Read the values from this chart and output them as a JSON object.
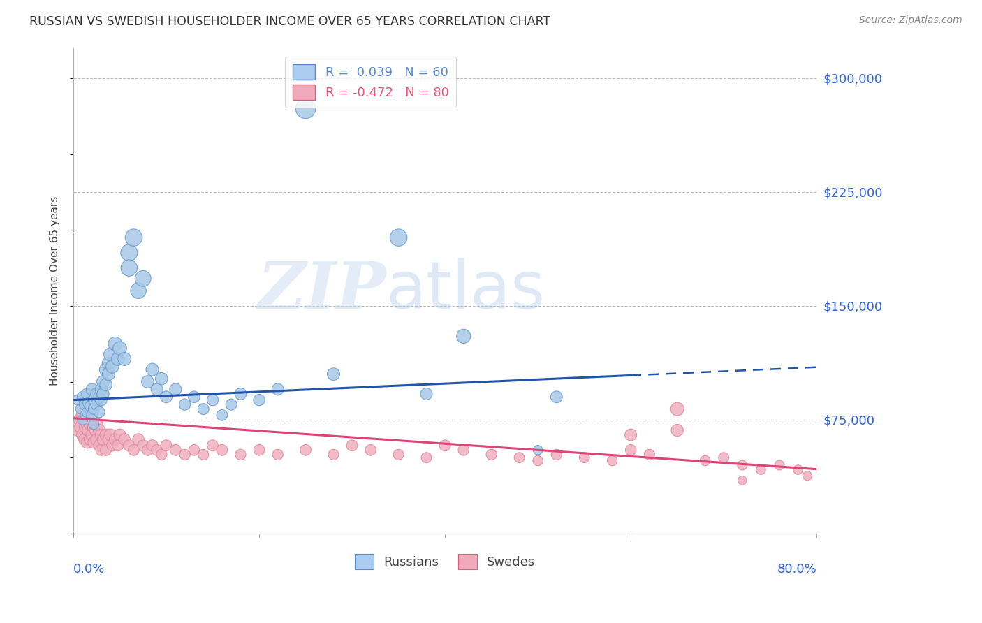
{
  "title": "RUSSIAN VS SWEDISH HOUSEHOLDER INCOME OVER 65 YEARS CORRELATION CHART",
  "source": "Source: ZipAtlas.com",
  "ylabel": "Householder Income Over 65 years",
  "yticks": [
    75000,
    150000,
    225000,
    300000
  ],
  "ytick_labels": [
    "$75,000",
    "$150,000",
    "$225,000",
    "$300,000"
  ],
  "xmin": 0.0,
  "xmax": 0.8,
  "ymin": 0,
  "ymax": 320000,
  "watermark_zip": "ZIP",
  "watermark_atlas": "atlas",
  "russian_color": "#a8c8e8",
  "russian_edge_color": "#6699cc",
  "swedish_color": "#f0b0c0",
  "swedish_edge_color": "#dd8899",
  "russian_line_color": "#2255aa",
  "swedish_line_color": "#dd4477",
  "russian_trend_x_solid_end": 0.6,
  "russian_trend_slope": 27000,
  "russian_trend_intercept": 88000,
  "swedish_trend_slope": -42000,
  "swedish_trend_intercept": 76000,
  "background_color": "#ffffff",
  "grid_color": "#bbbbbb",
  "ytick_color": "#3366dd",
  "legend_r1_label": "R =  0.039   N = 60",
  "legend_r2_label": "R = -0.472   N = 80",
  "legend_r1_color": "#5588cc",
  "legend_r2_color": "#ee5577",
  "legend_r1_patch": "#aaccee",
  "legend_r2_patch": "#f0aabb",
  "bottom_legend_russian": "Russians",
  "bottom_legend_swedish": "Swedes",
  "russian_scatter_x": [
    0.005,
    0.008,
    0.01,
    0.01,
    0.012,
    0.013,
    0.015,
    0.015,
    0.016,
    0.018,
    0.02,
    0.02,
    0.022,
    0.022,
    0.022,
    0.025,
    0.025,
    0.028,
    0.028,
    0.03,
    0.03,
    0.032,
    0.032,
    0.035,
    0.035,
    0.038,
    0.038,
    0.04,
    0.042,
    0.045,
    0.048,
    0.05,
    0.055,
    0.06,
    0.06,
    0.065,
    0.07,
    0.075,
    0.08,
    0.085,
    0.09,
    0.095,
    0.1,
    0.11,
    0.12,
    0.13,
    0.14,
    0.15,
    0.16,
    0.17,
    0.18,
    0.2,
    0.22,
    0.25,
    0.28,
    0.35,
    0.38,
    0.42,
    0.5,
    0.52
  ],
  "russian_scatter_y": [
    88000,
    82000,
    90000,
    75000,
    85000,
    78000,
    92000,
    80000,
    86000,
    84000,
    95000,
    78000,
    88000,
    82000,
    72000,
    92000,
    85000,
    90000,
    80000,
    95000,
    88000,
    100000,
    92000,
    108000,
    98000,
    112000,
    105000,
    118000,
    110000,
    125000,
    115000,
    122000,
    115000,
    185000,
    175000,
    195000,
    160000,
    168000,
    100000,
    108000,
    95000,
    102000,
    90000,
    95000,
    85000,
    90000,
    82000,
    88000,
    78000,
    85000,
    92000,
    88000,
    95000,
    280000,
    105000,
    195000,
    92000,
    130000,
    55000,
    90000
  ],
  "russian_scatter_sizes": [
    120,
    110,
    130,
    115,
    120,
    112,
    135,
    120,
    125,
    118,
    145,
    128,
    135,
    125,
    115,
    150,
    140,
    145,
    130,
    155,
    145,
    165,
    155,
    175,
    162,
    180,
    170,
    190,
    178,
    200,
    185,
    195,
    185,
    300,
    285,
    310,
    260,
    270,
    160,
    170,
    150,
    158,
    145,
    150,
    135,
    142,
    130,
    138,
    125,
    132,
    145,
    138,
    148,
    420,
    165,
    310,
    148,
    210,
    95,
    145
  ],
  "swedish_scatter_x": [
    0.003,
    0.005,
    0.007,
    0.008,
    0.01,
    0.01,
    0.012,
    0.012,
    0.013,
    0.015,
    0.015,
    0.016,
    0.018,
    0.018,
    0.02,
    0.02,
    0.022,
    0.022,
    0.024,
    0.025,
    0.025,
    0.028,
    0.028,
    0.03,
    0.03,
    0.032,
    0.035,
    0.035,
    0.038,
    0.04,
    0.042,
    0.045,
    0.048,
    0.05,
    0.055,
    0.06,
    0.065,
    0.07,
    0.075,
    0.08,
    0.085,
    0.09,
    0.095,
    0.1,
    0.11,
    0.12,
    0.13,
    0.14,
    0.15,
    0.16,
    0.18,
    0.2,
    0.22,
    0.25,
    0.28,
    0.3,
    0.32,
    0.35,
    0.38,
    0.4,
    0.42,
    0.45,
    0.48,
    0.5,
    0.52,
    0.55,
    0.58,
    0.6,
    0.62,
    0.65,
    0.68,
    0.7,
    0.72,
    0.74,
    0.76,
    0.78,
    0.79,
    0.6,
    0.65,
    0.72
  ],
  "swedish_scatter_y": [
    72000,
    68000,
    75000,
    70000,
    78000,
    65000,
    75000,
    62000,
    70000,
    72000,
    60000,
    68000,
    72000,
    62000,
    75000,
    65000,
    70000,
    60000,
    68000,
    72000,
    62000,
    68000,
    58000,
    65000,
    55000,
    62000,
    65000,
    55000,
    62000,
    65000,
    58000,
    62000,
    58000,
    65000,
    62000,
    58000,
    55000,
    62000,
    58000,
    55000,
    58000,
    55000,
    52000,
    58000,
    55000,
    52000,
    55000,
    52000,
    58000,
    55000,
    52000,
    55000,
    52000,
    55000,
    52000,
    58000,
    55000,
    52000,
    50000,
    58000,
    55000,
    52000,
    50000,
    48000,
    52000,
    50000,
    48000,
    55000,
    52000,
    82000,
    48000,
    50000,
    45000,
    42000,
    45000,
    42000,
    38000,
    65000,
    68000,
    35000
  ],
  "swedish_scatter_sizes": [
    160,
    150,
    165,
    158,
    170,
    155,
    165,
    148,
    158,
    162,
    148,
    155,
    162,
    148,
    168,
    155,
    160,
    145,
    155,
    162,
    148,
    158,
    140,
    150,
    132,
    145,
    150,
    132,
    145,
    150,
    135,
    145,
    132,
    150,
    142,
    135,
    128,
    142,
    132,
    128,
    135,
    128,
    120,
    132,
    128,
    120,
    125,
    120,
    132,
    128,
    120,
    125,
    120,
    125,
    118,
    130,
    125,
    118,
    115,
    132,
    125,
    120,
    112,
    108,
    120,
    112,
    108,
    125,
    120,
    185,
    108,
    112,
    100,
    95,
    100,
    95,
    88,
    148,
    155,
    82
  ]
}
